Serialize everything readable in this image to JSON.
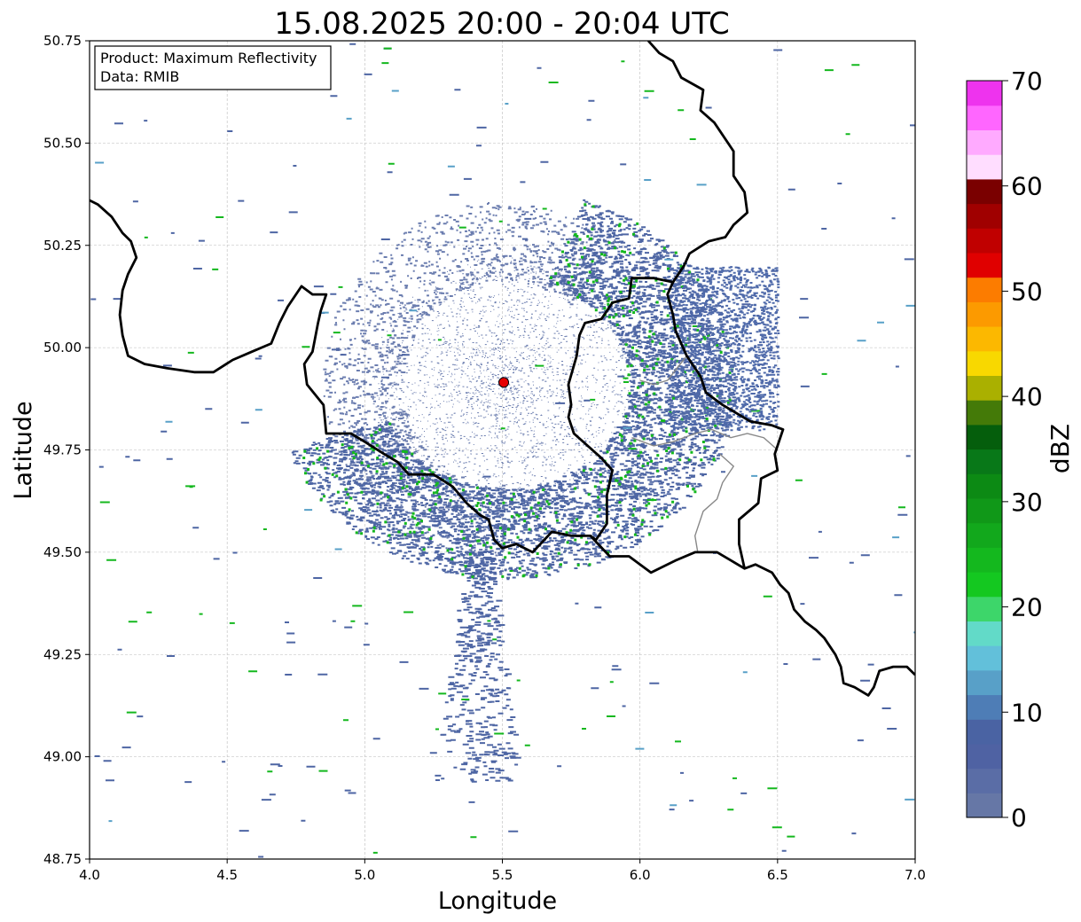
{
  "title": "15.08.2025 20:00 - 20:04 UTC",
  "info_box": {
    "product": "Product: Maximum Reflectivity",
    "data": "Data: RMIB"
  },
  "xlabel": "Longitude",
  "ylabel": "Latitude",
  "colorbar_label": "dBZ",
  "chart_data": {
    "type": "heatmap",
    "title": "15.08.2025 20:00 - 20:04 UTC",
    "xlabel": "Longitude",
    "ylabel": "Latitude",
    "xlim": [
      4.0,
      7.0
    ],
    "ylim": [
      48.75,
      50.75
    ],
    "x_ticks": [
      "4.0",
      "4.5",
      "5.0",
      "5.5",
      "6.0",
      "6.5",
      "7.0"
    ],
    "y_ticks": [
      "48.75",
      "49.00",
      "49.25",
      "49.50",
      "49.75",
      "50.00",
      "50.25",
      "50.50",
      "50.75"
    ],
    "grid": true,
    "radar_site": {
      "lon": 5.505,
      "lat": 49.915,
      "color": "#e60000"
    },
    "colorbar": {
      "label": "dBZ",
      "range": [
        0,
        70
      ],
      "ticks": [
        "0",
        "10",
        "20",
        "30",
        "40",
        "50",
        "60",
        "70"
      ],
      "colors": [
        "#6677a6",
        "#5a6da6",
        "#4f62a3",
        "#4a63a3",
        "#4e7db6",
        "#58a0c8",
        "#62c0da",
        "#62dac8",
        "#3dd66a",
        "#14c820",
        "#14b81e",
        "#12a81c",
        "#109818",
        "#0c8a14",
        "#087818",
        "#055e0c",
        "#447a08",
        "#aab000",
        "#f8d800",
        "#fcb800",
        "#fc9a00",
        "#fc7c00",
        "#e00000",
        "#c00000",
        "#a00000",
        "#7a0000",
        "#ffddff",
        "#ffaaff",
        "#ff66ff",
        "#ee33ee"
      ]
    },
    "borders": [
      {
        "name": "belgium-france",
        "color": "#000000",
        "points": [
          [
            4.0,
            50.36
          ],
          [
            4.03,
            50.35
          ],
          [
            4.08,
            50.32
          ],
          [
            4.12,
            50.28
          ],
          [
            4.15,
            50.26
          ],
          [
            4.17,
            50.22
          ],
          [
            4.14,
            50.18
          ],
          [
            4.12,
            50.14
          ],
          [
            4.11,
            50.08
          ],
          [
            4.12,
            50.03
          ],
          [
            4.14,
            49.98
          ],
          [
            4.2,
            49.96
          ],
          [
            4.28,
            49.95
          ],
          [
            4.38,
            49.94
          ],
          [
            4.45,
            49.94
          ],
          [
            4.52,
            49.97
          ],
          [
            4.59,
            49.99
          ],
          [
            4.66,
            50.01
          ],
          [
            4.69,
            50.06
          ],
          [
            4.72,
            50.1
          ],
          [
            4.77,
            50.15
          ],
          [
            4.81,
            50.13
          ],
          [
            4.86,
            50.13
          ],
          [
            4.84,
            50.09
          ],
          [
            4.83,
            50.06
          ],
          [
            4.81,
            49.99
          ],
          [
            4.78,
            49.96
          ],
          [
            4.79,
            49.91
          ],
          [
            4.85,
            49.86
          ],
          [
            4.86,
            49.79
          ],
          [
            4.95,
            49.79
          ],
          [
            5.0,
            49.77
          ],
          [
            5.07,
            49.74
          ],
          [
            5.12,
            49.72
          ],
          [
            5.16,
            49.69
          ],
          [
            5.25,
            49.69
          ],
          [
            5.32,
            49.66
          ],
          [
            5.37,
            49.62
          ],
          [
            5.42,
            49.59
          ],
          [
            5.45,
            49.58
          ],
          [
            5.47,
            49.53
          ],
          [
            5.5,
            49.51
          ],
          [
            5.55,
            49.52
          ],
          [
            5.61,
            49.5
          ],
          [
            5.68,
            49.55
          ],
          [
            5.75,
            49.54
          ],
          [
            5.82,
            49.54
          ],
          [
            5.89,
            49.49
          ],
          [
            5.96,
            49.49
          ],
          [
            6.04,
            49.45
          ],
          [
            6.13,
            49.48
          ],
          [
            6.2,
            49.5
          ],
          [
            6.28,
            49.5
          ],
          [
            6.33,
            49.48
          ],
          [
            6.38,
            49.46
          ],
          [
            6.42,
            49.47
          ],
          [
            6.48,
            49.45
          ],
          [
            6.51,
            49.42
          ],
          [
            6.54,
            49.4
          ],
          [
            6.56,
            49.36
          ],
          [
            6.6,
            49.33
          ],
          [
            6.64,
            49.31
          ],
          [
            6.67,
            49.29
          ],
          [
            6.71,
            49.25
          ],
          [
            6.73,
            49.22
          ],
          [
            6.74,
            49.18
          ],
          [
            6.78,
            49.17
          ],
          [
            6.83,
            49.15
          ],
          [
            6.85,
            49.17
          ],
          [
            6.87,
            49.21
          ],
          [
            6.92,
            49.22
          ],
          [
            6.97,
            49.22
          ],
          [
            7.0,
            49.2
          ]
        ]
      },
      {
        "name": "belgium-luxembourg-germany",
        "color": "#000000",
        "points": [
          [
            6.03,
            50.75
          ],
          [
            6.07,
            50.72
          ],
          [
            6.12,
            50.7
          ],
          [
            6.15,
            50.66
          ],
          [
            6.23,
            50.63
          ],
          [
            6.22,
            50.58
          ],
          [
            6.27,
            50.55
          ],
          [
            6.34,
            50.48
          ],
          [
            6.34,
            50.42
          ],
          [
            6.38,
            50.38
          ],
          [
            6.39,
            50.33
          ],
          [
            6.34,
            50.3
          ],
          [
            6.31,
            50.27
          ],
          [
            6.25,
            50.26
          ],
          [
            6.18,
            50.23
          ],
          [
            6.16,
            50.2
          ],
          [
            6.12,
            50.16
          ],
          [
            6.1,
            50.13
          ],
          [
            6.12,
            50.08
          ],
          [
            6.13,
            50.04
          ],
          [
            6.17,
            49.98
          ],
          [
            6.22,
            49.93
          ],
          [
            6.24,
            49.89
          ],
          [
            6.3,
            49.86
          ],
          [
            6.4,
            49.82
          ],
          [
            6.48,
            49.81
          ],
          [
            6.52,
            49.8
          ],
          [
            6.49,
            49.74
          ],
          [
            6.5,
            49.7
          ],
          [
            6.44,
            49.68
          ],
          [
            6.43,
            49.62
          ],
          [
            6.36,
            49.58
          ],
          [
            6.36,
            49.52
          ],
          [
            6.38,
            49.46
          ]
        ]
      },
      {
        "name": "belgium-luxembourg",
        "color": "#000000",
        "points": [
          [
            6.12,
            50.16
          ],
          [
            6.05,
            50.17
          ],
          [
            5.97,
            50.17
          ],
          [
            5.96,
            50.12
          ],
          [
            5.9,
            50.11
          ],
          [
            5.86,
            50.07
          ],
          [
            5.8,
            50.06
          ],
          [
            5.78,
            50.03
          ],
          [
            5.77,
            49.98
          ],
          [
            5.74,
            49.91
          ],
          [
            5.75,
            49.86
          ],
          [
            5.74,
            49.83
          ],
          [
            5.76,
            49.79
          ],
          [
            5.86,
            49.73
          ],
          [
            5.9,
            49.7
          ],
          [
            5.88,
            49.64
          ],
          [
            5.88,
            49.57
          ],
          [
            5.84,
            49.53
          ],
          [
            5.82,
            49.54
          ]
        ]
      }
    ],
    "admin_lines": [
      {
        "name": "provincial-line-1",
        "color": "#888888",
        "points": [
          [
            5.97,
            49.78
          ],
          [
            6.05,
            49.76
          ],
          [
            6.12,
            49.77
          ],
          [
            6.2,
            49.79
          ],
          [
            6.26,
            49.8
          ]
        ]
      },
      {
        "name": "provincial-line-2",
        "color": "#888888",
        "points": [
          [
            6.26,
            49.8
          ],
          [
            6.33,
            49.78
          ],
          [
            6.39,
            49.79
          ],
          [
            6.45,
            49.78
          ],
          [
            6.5,
            49.75
          ]
        ]
      },
      {
        "name": "provincial-line-3",
        "color": "#888888",
        "points": [
          [
            6.29,
            49.74
          ],
          [
            6.34,
            49.71
          ],
          [
            6.3,
            49.67
          ],
          [
            6.28,
            49.63
          ],
          [
            6.23,
            49.6
          ],
          [
            6.2,
            49.54
          ],
          [
            6.21,
            49.5
          ]
        ]
      },
      {
        "name": "provincial-line-4",
        "color": "#888888",
        "points": [
          [
            6.0,
            49.92
          ],
          [
            6.05,
            49.91
          ],
          [
            6.1,
            49.92
          ],
          [
            6.17,
            49.98
          ]
        ]
      }
    ]
  }
}
